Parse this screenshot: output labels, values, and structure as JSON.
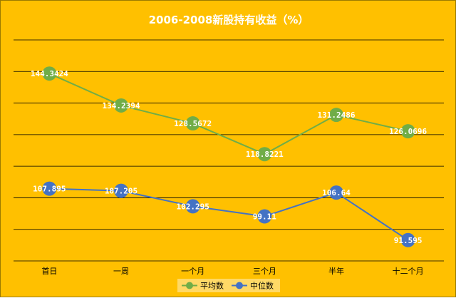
{
  "chart_data": {
    "type": "line",
    "title": "2006-2008新股持有收益（%）",
    "xlabel": "",
    "ylabel": "",
    "categories": [
      "首日",
      "一周",
      "一个月",
      "三个月",
      "半年",
      "十二个月"
    ],
    "ylim": [
      85,
      155
    ],
    "grid": true,
    "legend": "bottom",
    "series": [
      {
        "name": "平均数",
        "color": "#70ad47",
        "values": [
          144.3424,
          134.2394,
          128.5672,
          118.8221,
          131.2486,
          126.0696
        ],
        "labels": [
          "144.3424",
          "134.2394",
          "128.5672",
          "118.8221",
          "131.2486",
          "126.0696"
        ]
      },
      {
        "name": "中位数",
        "color": "#4472c4",
        "values": [
          107.895,
          107.205,
          102.295,
          99.11,
          106.64,
          91.595
        ],
        "labels": [
          "107.895",
          "107.205",
          "102.295",
          "99.11",
          "106.64",
          "91.595"
        ]
      }
    ]
  }
}
